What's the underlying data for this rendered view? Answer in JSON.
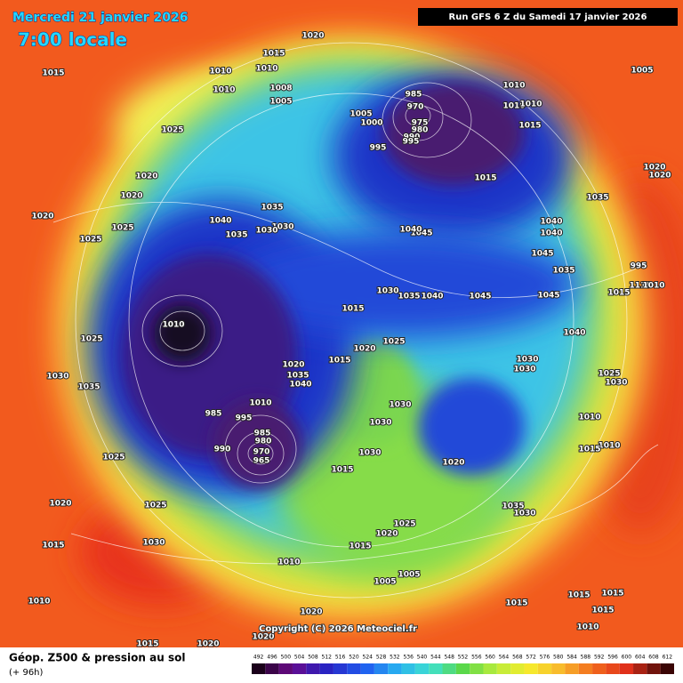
{
  "header": {
    "date": "Mercredi 21 janvier 2026",
    "time": "7:00 locale",
    "run": "Run GFS 6 Z du Samedi 17 janvier 2026",
    "copyright": "Copyright (C) 2026 Meteociel.fr"
  },
  "isobar_labels": [
    "1020",
    "1015",
    "1010",
    "1010",
    "1015",
    "1010",
    "1008",
    "1005",
    "1025",
    "1020",
    "1020",
    "1020",
    "1025",
    "1025",
    "1040",
    "1035",
    "1035",
    "1030",
    "1030",
    "1010",
    "1025",
    "1030",
    "1035",
    "985",
    "995",
    "990",
    "985",
    "980",
    "970",
    "965",
    "1020",
    "1035",
    "1040",
    "1010",
    "1015",
    "1015",
    "1020",
    "1025",
    "1030",
    "1035",
    "1040",
    "1045",
    "1030",
    "1030",
    "1030",
    "1015",
    "1020",
    "1025",
    "1020",
    "1025",
    "1030",
    "1015",
    "1010",
    "1010",
    "1020",
    "1020",
    "1015",
    "1020",
    "1025",
    "1020",
    "1015",
    "1005",
    "1005",
    "1030",
    "1035",
    "985",
    "970",
    "975",
    "980",
    "990",
    "995",
    "1005",
    "1000",
    "995",
    "1010",
    "1010",
    "1010",
    "1015",
    "1015",
    "1040",
    "1040",
    "1045",
    "1040",
    "1045",
    "1035",
    "1045",
    "1040",
    "1030",
    "1030",
    "1035",
    "1020",
    "1020",
    "995",
    "1015",
    "1110",
    "1010",
    "1005",
    "1025",
    "1030",
    "1010",
    "1010",
    "1015",
    "1015",
    "1015",
    "1015",
    "1015",
    "1010"
  ],
  "legend": {
    "title": "Géop. Z500 & pression au sol",
    "lead_time": "(+ 96h)",
    "scale": [
      492,
      496,
      500,
      504,
      508,
      512,
      516,
      520,
      524,
      528,
      532,
      536,
      540,
      544,
      548,
      552,
      556,
      560,
      564,
      568,
      572,
      576,
      580,
      584,
      588,
      592,
      596,
      600,
      604,
      608,
      612
    ]
  }
}
